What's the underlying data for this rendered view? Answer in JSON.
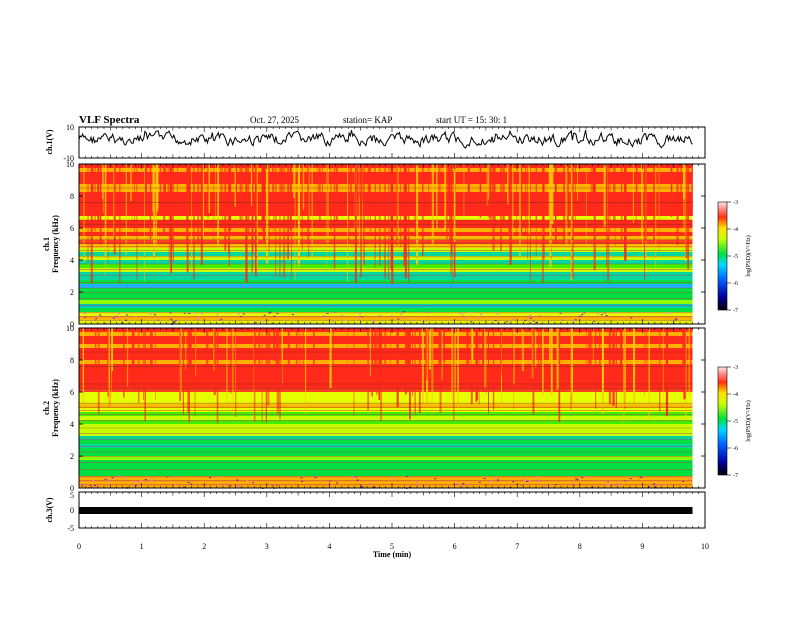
{
  "header": {
    "title": "VLF Spectra",
    "date": "Oct. 27, 2025",
    "station": "station= KAP",
    "start_time": "start  UT =   15: 30: 1"
  },
  "chart_data": [
    {
      "type": "line",
      "name": "ch1-waveform",
      "ylabel": "ch.1(V)",
      "ylim": [
        -10,
        10
      ],
      "ytick_labels": [
        "10",
        "-10"
      ],
      "xlim": [
        0,
        10
      ],
      "duration_min": 9.8
    },
    {
      "type": "heatmap",
      "name": "ch1-spectrogram",
      "ylabel": "Frequency  (kHz)",
      "ylabel_prefix": "ch.1",
      "ylim": [
        0,
        10
      ],
      "ytick_labels": [
        "0",
        "2",
        "4",
        "6",
        "8",
        "10"
      ],
      "xlim": [
        0,
        10
      ],
      "colorbar": {
        "label": "log(PSD)(V²/Hz)",
        "range": [
          -7,
          -3
        ],
        "tick_labels": [
          "-3",
          "-4",
          "-5",
          "-6",
          "-7"
        ]
      }
    },
    {
      "type": "heatmap",
      "name": "ch2-spectrogram",
      "ylabel": "Frequency  (kHz)",
      "ylabel_prefix": "ch.2",
      "ylim": [
        0,
        10
      ],
      "ytick_labels": [
        "0",
        "2",
        "4",
        "6",
        "8",
        "10"
      ],
      "xlim": [
        0,
        10
      ],
      "colorbar": {
        "label": "log(PSD)(V²/Hz)",
        "range": [
          -7,
          -3
        ],
        "tick_labels": [
          "-3",
          "-4",
          "-5",
          "-6",
          "-7"
        ]
      }
    },
    {
      "type": "line",
      "name": "ch3-waveform",
      "ylabel": "ch.3(V)",
      "ylim": [
        -5,
        5
      ],
      "ytick_labels": [
        "5",
        "0",
        "-5"
      ],
      "xlim": [
        0,
        10
      ],
      "xlabel": "Time  (min)",
      "xtick_labels": [
        "0",
        "1",
        "2",
        "3",
        "4",
        "5",
        "6",
        "7",
        "8",
        "9",
        "10"
      ]
    }
  ],
  "colors": {
    "high": "#ff2a1a",
    "mid": "#e6ff00",
    "low": "#00e040",
    "lowest": "#000088"
  }
}
